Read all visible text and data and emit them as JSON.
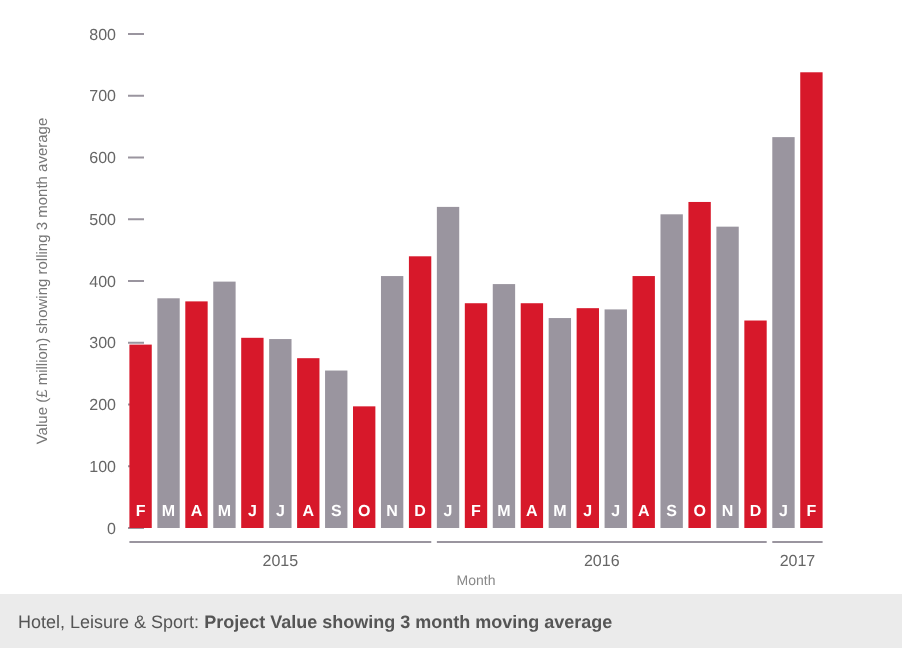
{
  "chart_data": {
    "type": "bar",
    "title": "Hotel, Leisure & Sport:",
    "subtitle": "Project Value showing 3 month moving average",
    "ylabel": "Value (£ million) showing rolling 3 month average",
    "xlabel": "Month",
    "categories": [
      "F",
      "M",
      "A",
      "M",
      "J",
      "J",
      "A",
      "S",
      "O",
      "N",
      "D",
      "J",
      "F",
      "M",
      "A",
      "M",
      "J",
      "J",
      "A",
      "S",
      "O",
      "N",
      "D",
      "J",
      "F"
    ],
    "values": [
      297,
      372,
      367,
      399,
      308,
      306,
      275,
      255,
      197,
      408,
      440,
      520,
      364,
      395,
      364,
      340,
      356,
      354,
      408,
      508,
      528,
      488,
      336,
      633,
      738
    ],
    "colors": [
      "#d7182a",
      "#9a959f",
      "#d7182a",
      "#9a959f",
      "#d7182a",
      "#9a959f",
      "#d7182a",
      "#9a959f",
      "#d7182a",
      "#9a959f",
      "#d7182a",
      "#9a959f",
      "#d7182a",
      "#9a959f",
      "#d7182a",
      "#9a959f",
      "#d7182a",
      "#9a959f",
      "#d7182a",
      "#9a959f",
      "#d7182a",
      "#9a959f",
      "#d7182a",
      "#9a959f",
      "#d7182a"
    ],
    "annotations": [
      "2015",
      "2016",
      "2017"
    ],
    "ylim": [
      0,
      800
    ],
    "yticks": [
      0,
      100,
      200,
      300,
      400,
      500,
      600,
      700,
      800
    ],
    "grid": false
  }
}
